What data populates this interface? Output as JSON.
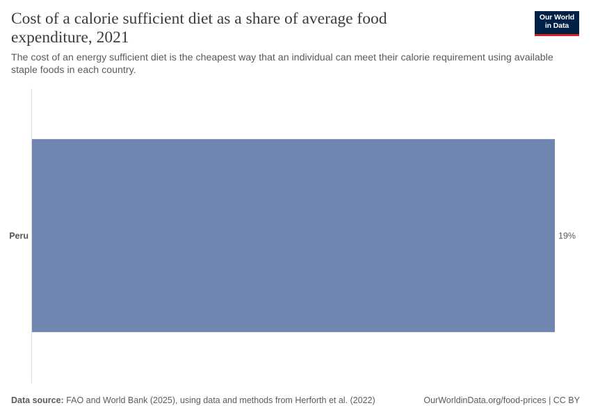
{
  "header": {
    "title": "Cost of a calorie sufficient diet as a share of average food expenditure, 2021",
    "subtitle": "The cost of an energy sufficient diet is the cheapest way that an individual can meet their calorie requirement using available staple foods in each country."
  },
  "logo": {
    "line1": "Our World",
    "line2": "in Data",
    "bg_color": "#002147",
    "accent_color": "#ce261e"
  },
  "chart_data": {
    "type": "bar",
    "orientation": "horizontal",
    "categories": [
      "Peru"
    ],
    "values": [
      19
    ],
    "value_labels": [
      "19%"
    ],
    "unit": "%",
    "bar_color": "#6f87b0",
    "xlim": [
      0,
      19
    ],
    "grid": false
  },
  "footer": {
    "source_label": "Data source:",
    "source_text": " FAO and World Bank (2025), using data and methods from Herforth et al. (2022)",
    "url_text": "OurWorldinData.org/food-prices | CC BY"
  }
}
